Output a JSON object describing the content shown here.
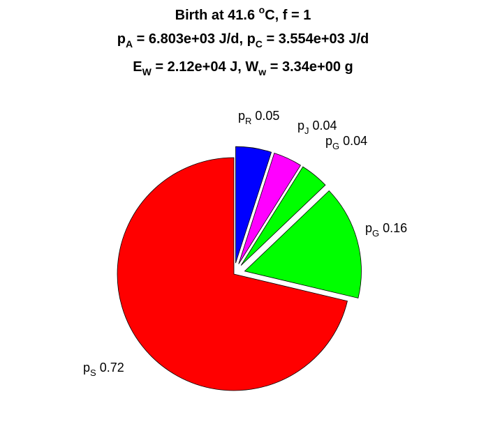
{
  "title": {
    "line1": {
      "prefix": "Birth at 41.6 ",
      "deg": "o",
      "suffix": "C, f = 1"
    },
    "line2": {
      "a_var": "p",
      "a_sub": "A",
      "a_val": " = 6.803e+03 J/d, ",
      "c_var": "p",
      "c_sub": "C",
      "c_val": " = 3.554e+03 J/d"
    },
    "line3": {
      "e_var": "E",
      "e_sub": "W",
      "e_val": " = 2.12e+04 J, ",
      "w_var": "W",
      "w_sub": "w",
      "w_val": " = 3.34e+00 g"
    }
  },
  "chart_data": {
    "type": "pie",
    "start": "12 o'clock",
    "direction": "clockwise",
    "slices": [
      {
        "var": "p",
        "sub": "R",
        "value": 0.05,
        "label_value": "0.05",
        "color": "#0000ff",
        "exploded": true
      },
      {
        "var": "p",
        "sub": "J",
        "value": 0.04,
        "label_value": "0.04",
        "color": "#ff00ff",
        "exploded": true
      },
      {
        "var": "p",
        "sub": "G",
        "value": 0.04,
        "label_value": "0.04",
        "color": "#00ff00",
        "exploded": true
      },
      {
        "var": "p",
        "sub": "G",
        "value": 0.16,
        "label_value": "0.16",
        "color": "#00ff00",
        "exploded": true
      },
      {
        "var": "p",
        "sub": "S",
        "value": 0.72,
        "label_value": "0.72",
        "color": "#ff0000",
        "exploded": false
      }
    ]
  }
}
